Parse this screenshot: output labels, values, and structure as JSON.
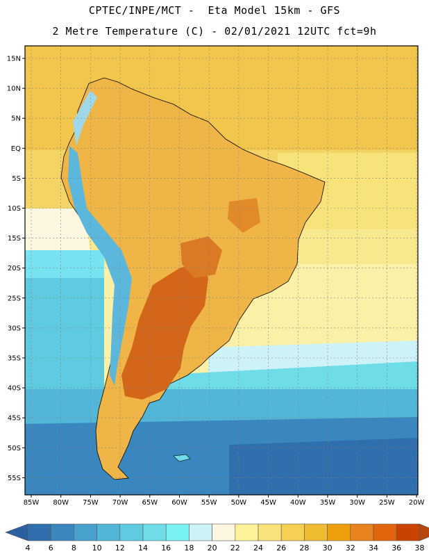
{
  "header": {
    "line1": "CPTEC/INPE/MCT -  Eta Model 15km - GFS",
    "line2": "2 Metre Temperature (C) - 02/01/2021 12UTC fct=9h"
  },
  "map": {
    "region": "South America",
    "lat_labels": [
      "15N",
      "10N",
      "5N",
      "EQ",
      "5S",
      "10S",
      "15S",
      "20S",
      "25S",
      "30S",
      "35S",
      "40S",
      "45S",
      "50S",
      "55S"
    ],
    "lon_labels": [
      "85W",
      "80W",
      "75W",
      "70W",
      "65W",
      "60W",
      "55W",
      "50W",
      "45W",
      "40W",
      "35W",
      "30W",
      "25W",
      "20W"
    ]
  },
  "colorbar": {
    "labels": [
      "4",
      "6",
      "8",
      "10",
      "12",
      "14",
      "16",
      "18",
      "20",
      "22",
      "24",
      "26",
      "28",
      "30",
      "32",
      "34",
      "36",
      "38"
    ],
    "colors": [
      "#2f6fae",
      "#3a86bf",
      "#47a1cc",
      "#52b6d8",
      "#5fcbe0",
      "#6fdde8",
      "#78f2f5",
      "#cdf3f8",
      "#fdf6e0",
      "#fdf39a",
      "#fae27a",
      "#f5d052",
      "#f0bd32",
      "#eea00c",
      "#e8821e",
      "#e0650c",
      "#c94200"
    ],
    "low_color": "#2b5fa0",
    "high_color": "#b8470e"
  },
  "fields": {
    "sea_color": "#f4d36a",
    "land_color": "#efb546",
    "hot_color": "#d4661a",
    "andes_color": "#5bb8dc",
    "cold_ocean_color": "#3f9fcc"
  }
}
